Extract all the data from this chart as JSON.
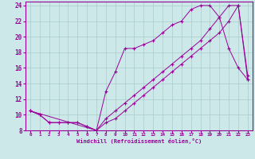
{
  "bg_color": "#cce8e8",
  "grid_color": "#aacccc",
  "line_color": "#990099",
  "marker": "+",
  "xlabel": "Windchill (Refroidissement éolien,°C)",
  "xlim": [
    -0.5,
    23.5
  ],
  "ylim": [
    8,
    24.5
  ],
  "yticks": [
    8,
    10,
    12,
    14,
    16,
    18,
    20,
    22,
    24
  ],
  "xticks": [
    0,
    1,
    2,
    3,
    4,
    5,
    6,
    7,
    8,
    9,
    10,
    11,
    12,
    13,
    14,
    15,
    16,
    17,
    18,
    19,
    20,
    21,
    22,
    23
  ],
  "line1_x": [
    0,
    1,
    2,
    3,
    4,
    5,
    6,
    7,
    8,
    9,
    10,
    11,
    12,
    13,
    14,
    15,
    16,
    17,
    18,
    19,
    20,
    21,
    22,
    23
  ],
  "line1_y": [
    10.5,
    10.0,
    9.0,
    9.0,
    9.0,
    9.0,
    8.5,
    8.0,
    9.0,
    9.5,
    10.5,
    11.5,
    12.5,
    13.5,
    14.5,
    15.5,
    16.5,
    17.5,
    18.5,
    19.5,
    20.5,
    22.0,
    24.0,
    15.0
  ],
  "line2_x": [
    0,
    1,
    2,
    3,
    4,
    5,
    6,
    7,
    8,
    9,
    10,
    11,
    12,
    13,
    14,
    15,
    16,
    17,
    18,
    19,
    20,
    21,
    22,
    23
  ],
  "line2_y": [
    10.5,
    10.0,
    9.0,
    9.0,
    9.0,
    9.0,
    8.5,
    8.0,
    13.0,
    15.5,
    18.5,
    18.5,
    19.0,
    19.5,
    20.5,
    21.5,
    22.0,
    23.5,
    24.0,
    24.0,
    22.5,
    18.5,
    16.0,
    14.5
  ],
  "line3_x": [
    0,
    7,
    8,
    9,
    10,
    11,
    12,
    13,
    14,
    15,
    16,
    17,
    18,
    19,
    20,
    21,
    22,
    23
  ],
  "line3_y": [
    10.5,
    8.0,
    9.5,
    10.5,
    11.5,
    12.5,
    13.5,
    14.5,
    15.5,
    16.5,
    17.5,
    18.5,
    19.5,
    21.0,
    22.5,
    24.0,
    24.0,
    14.5
  ]
}
